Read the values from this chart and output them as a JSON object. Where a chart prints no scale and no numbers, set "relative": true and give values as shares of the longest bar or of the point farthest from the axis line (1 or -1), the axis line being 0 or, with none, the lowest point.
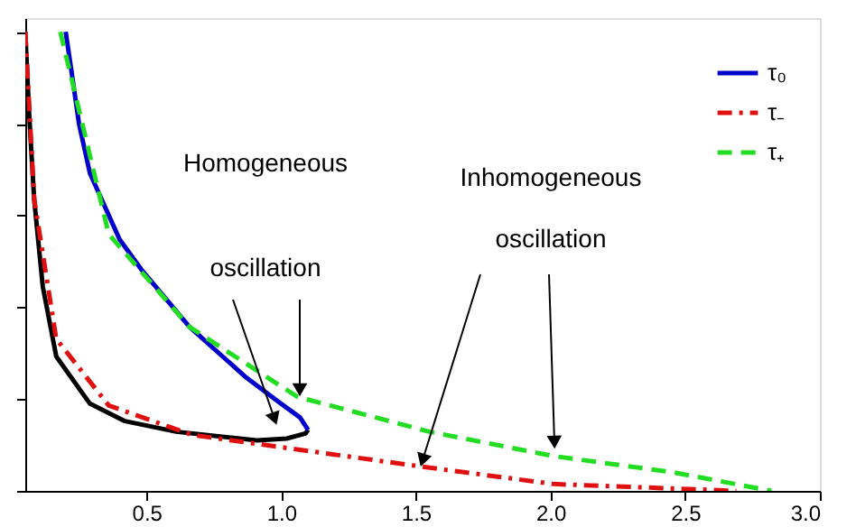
{
  "chart_data": {
    "type": "line",
    "relative": true,
    "xlim": [
      0.05,
      3.0
    ],
    "xticks": [
      0.5,
      {
        "value": 1,
        "label": "1.0"
      },
      1.5,
      {
        "value": 2,
        "label": "2.0"
      },
      2.5,
      {
        "value": 3,
        "label": "3.0"
      }
    ],
    "series": [
      {
        "color": "#000000",
        "line_style": "solid",
        "x": [
          0.05,
          0.064,
          0.083,
          0.115,
          0.165,
          0.29,
          0.42,
          0.61,
          0.91,
          1.02,
          1.09,
          1.1
        ],
        "values": [
          1.0,
          0.825,
          0.635,
          0.445,
          0.293,
          0.19,
          0.152,
          0.129,
          0.11,
          0.114,
          0.125,
          0.133
        ]
      },
      {
        "name": "τ₀",
        "color": "#0000cc",
        "line_style": "solid",
        "x": [
          0.2,
          0.22,
          0.25,
          0.29,
          0.4,
          0.48,
          0.66,
          0.87,
          0.99,
          1.07,
          1.1
        ],
        "values": [
          1.0,
          0.92,
          0.798,
          0.692,
          0.548,
          0.483,
          0.357,
          0.247,
          0.194,
          0.16,
          0.133
        ]
      },
      {
        "name": "τ₋",
        "color": "#e01010",
        "line_style": "dashdot",
        "x": [
          0.05,
          0.083,
          0.165,
          0.36,
          0.67,
          1.52,
          2.01,
          2.69
        ],
        "values": [
          1.0,
          0.635,
          0.331,
          0.186,
          0.122,
          0.053,
          0.015,
          0.0
        ]
      },
      {
        "name": "τ₊",
        "color": "#22dd22",
        "line_style": "dashed",
        "x": [
          0.18,
          0.36,
          0.66,
          1.06,
          1.55,
          2.01,
          2.46,
          2.82
        ],
        "values": [
          1.0,
          0.559,
          0.357,
          0.205,
          0.129,
          0.076,
          0.04,
          0.0
        ]
      }
    ],
    "annotations": [
      "Homogeneous\noscillation",
      "Inhomogeneous\noscillation"
    ],
    "legend": "top right",
    "grid": false
  }
}
